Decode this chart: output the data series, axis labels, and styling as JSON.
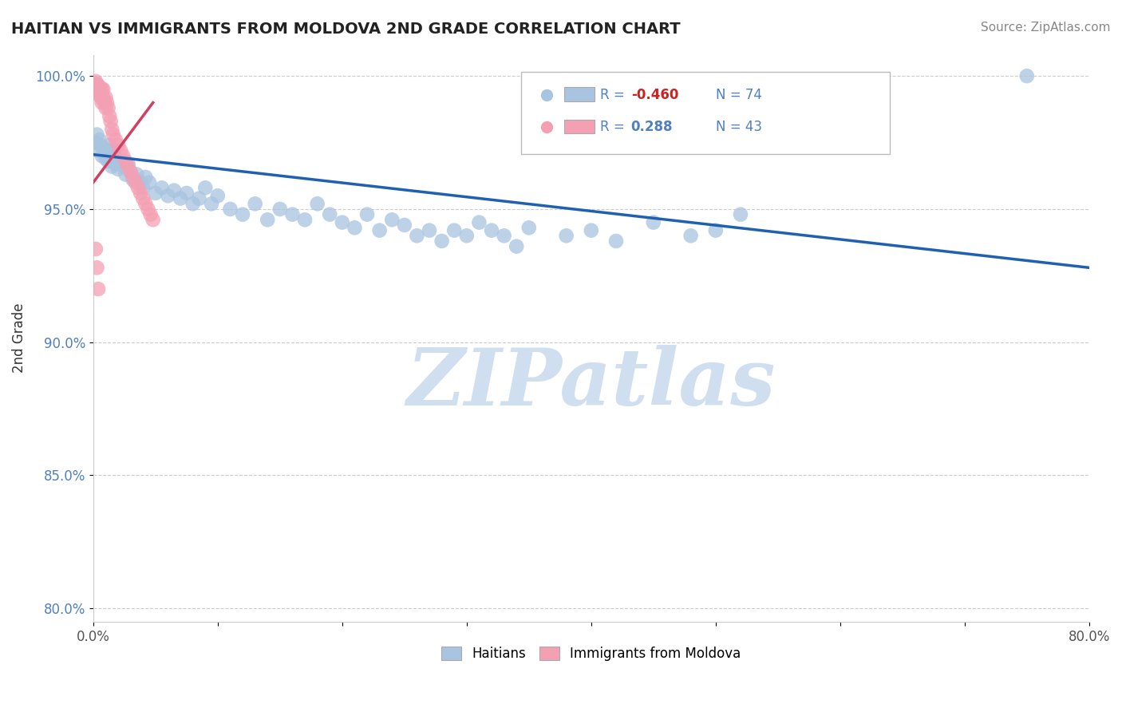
{
  "title": "HAITIAN VS IMMIGRANTS FROM MOLDOVA 2ND GRADE CORRELATION CHART",
  "source_text": "Source: ZipAtlas.com",
  "ylabel": "2nd Grade",
  "xlim": [
    0.0,
    0.8
  ],
  "ylim": [
    0.795,
    1.008
  ],
  "xticks": [
    0.0,
    0.1,
    0.2,
    0.3,
    0.4,
    0.5,
    0.6,
    0.7,
    0.8
  ],
  "xticklabels": [
    "0.0%",
    "",
    "",
    "",
    "",
    "",
    "",
    "",
    "80.0%"
  ],
  "yticks": [
    0.8,
    0.85,
    0.9,
    0.95,
    1.0
  ],
  "yticklabels": [
    "80.0%",
    "85.0%",
    "90.0%",
    "95.0%",
    "100.0%"
  ],
  "blue_R": -0.46,
  "blue_N": 74,
  "pink_R": 0.288,
  "pink_N": 43,
  "blue_color": "#a8c4e0",
  "pink_color": "#f4a0b4",
  "blue_line_color": "#2060b0",
  "pink_line_color": "#d04060",
  "watermark": "ZIPatlas",
  "watermark_color": "#d0dff0",
  "legend_blue_label": "Haitians",
  "legend_pink_label": "Immigrants from Moldova",
  "blue_scatter_x": [
    0.002,
    0.003,
    0.004,
    0.005,
    0.006,
    0.007,
    0.008,
    0.009,
    0.01,
    0.011,
    0.012,
    0.013,
    0.014,
    0.015,
    0.016,
    0.017,
    0.018,
    0.019,
    0.02,
    0.022,
    0.024,
    0.026,
    0.028,
    0.03,
    0.032,
    0.035,
    0.038,
    0.04,
    0.042,
    0.045,
    0.05,
    0.055,
    0.06,
    0.065,
    0.07,
    0.075,
    0.08,
    0.085,
    0.09,
    0.095,
    0.1,
    0.11,
    0.12,
    0.13,
    0.14,
    0.15,
    0.16,
    0.17,
    0.18,
    0.19,
    0.2,
    0.21,
    0.22,
    0.23,
    0.24,
    0.25,
    0.26,
    0.27,
    0.28,
    0.29,
    0.3,
    0.31,
    0.32,
    0.33,
    0.34,
    0.35,
    0.38,
    0.4,
    0.42,
    0.45,
    0.48,
    0.5,
    0.52,
    0.75
  ],
  "blue_scatter_y": [
    0.975,
    0.978,
    0.972,
    0.976,
    0.974,
    0.97,
    0.973,
    0.971,
    0.969,
    0.972,
    0.968,
    0.974,
    0.97,
    0.966,
    0.968,
    0.972,
    0.967,
    0.969,
    0.965,
    0.968,
    0.966,
    0.963,
    0.967,
    0.964,
    0.961,
    0.963,
    0.96,
    0.958,
    0.962,
    0.96,
    0.956,
    0.958,
    0.955,
    0.957,
    0.954,
    0.956,
    0.952,
    0.954,
    0.958,
    0.952,
    0.955,
    0.95,
    0.948,
    0.952,
    0.946,
    0.95,
    0.948,
    0.946,
    0.952,
    0.948,
    0.945,
    0.943,
    0.948,
    0.942,
    0.946,
    0.944,
    0.94,
    0.942,
    0.938,
    0.942,
    0.94,
    0.945,
    0.942,
    0.94,
    0.936,
    0.943,
    0.94,
    0.942,
    0.938,
    0.945,
    0.94,
    0.942,
    0.948,
    1.0
  ],
  "pink_scatter_x": [
    0.001,
    0.002,
    0.002,
    0.003,
    0.003,
    0.004,
    0.004,
    0.005,
    0.005,
    0.006,
    0.006,
    0.007,
    0.007,
    0.008,
    0.008,
    0.009,
    0.01,
    0.01,
    0.011,
    0.012,
    0.013,
    0.014,
    0.015,
    0.016,
    0.018,
    0.02,
    0.022,
    0.024,
    0.026,
    0.028,
    0.03,
    0.032,
    0.034,
    0.036,
    0.038,
    0.04,
    0.042,
    0.044,
    0.046,
    0.048,
    0.002,
    0.003,
    0.004
  ],
  "pink_scatter_y": [
    0.997,
    0.998,
    0.996,
    0.997,
    0.995,
    0.994,
    0.996,
    0.993,
    0.996,
    0.994,
    0.992,
    0.995,
    0.99,
    0.992,
    0.995,
    0.99,
    0.988,
    0.992,
    0.99,
    0.988,
    0.985,
    0.983,
    0.98,
    0.978,
    0.976,
    0.974,
    0.972,
    0.97,
    0.968,
    0.966,
    0.964,
    0.962,
    0.96,
    0.958,
    0.956,
    0.954,
    0.952,
    0.95,
    0.948,
    0.946,
    0.935,
    0.928,
    0.92
  ],
  "blue_line_x0": 0.0,
  "blue_line_x1": 0.8,
  "blue_line_y0": 0.9705,
  "blue_line_y1": 0.928,
  "pink_line_x0": 0.0,
  "pink_line_x1": 0.048,
  "pink_line_y0": 0.96,
  "pink_line_y1": 0.99
}
